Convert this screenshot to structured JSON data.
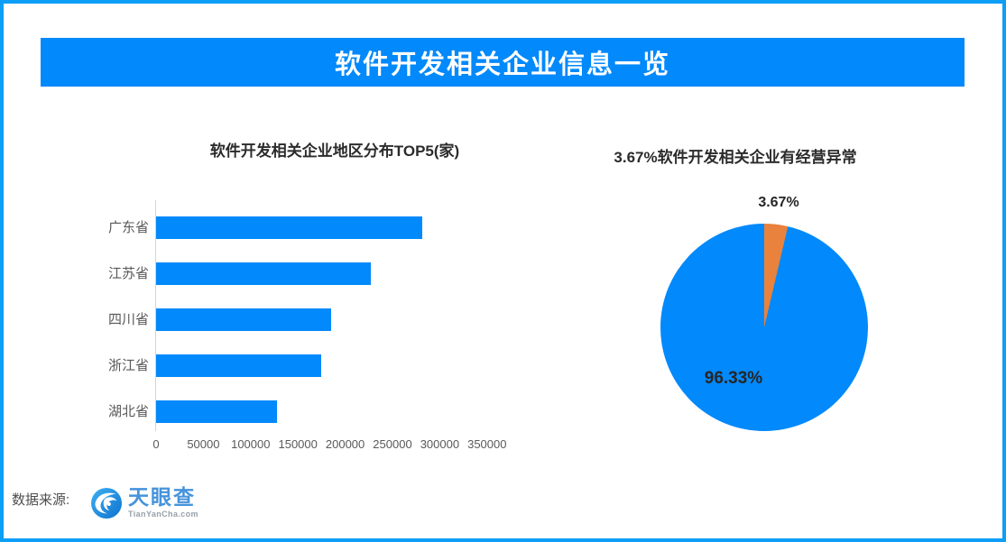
{
  "page": {
    "border_color": "#0d9ef5",
    "background_color": "#ffffff",
    "accent_blue": "#0289fb",
    "accent_orange": "#e8823d"
  },
  "banner": {
    "title": "软件开发相关企业信息一览",
    "background": "#0289fb",
    "text_color": "#ffffff"
  },
  "chart_data": [
    {
      "type": "bar",
      "orientation": "horizontal",
      "title": "软件开发相关企业地区分布TOP5(家)",
      "categories": [
        "广东省",
        "江苏省",
        "四川省",
        "浙江省",
        "湖北省"
      ],
      "values": [
        281000,
        227000,
        185000,
        175000,
        128000
      ],
      "xlabel": "",
      "ylabel": "",
      "xlim": [
        0,
        350000
      ],
      "xticks": [
        0,
        50000,
        100000,
        150000,
        200000,
        250000,
        300000,
        350000
      ],
      "bar_color": "#0289fb",
      "grid": false,
      "legend": false
    },
    {
      "type": "pie",
      "title": "3.67%软件开发相关企业有经营异常",
      "labels": [
        "3.67%",
        "96.33%"
      ],
      "values": [
        3.67,
        96.33
      ],
      "colors": [
        "#e8823d",
        "#0289fb"
      ],
      "start_angle_deg": 0,
      "direction": "clockwise",
      "label_positions": [
        "outside-top",
        "inside-lower-left"
      ],
      "legend": false
    }
  ],
  "footer": {
    "source_label": "数据来源:",
    "logo": {
      "name": "天眼查",
      "domain": "TianYanCha.com"
    }
  }
}
